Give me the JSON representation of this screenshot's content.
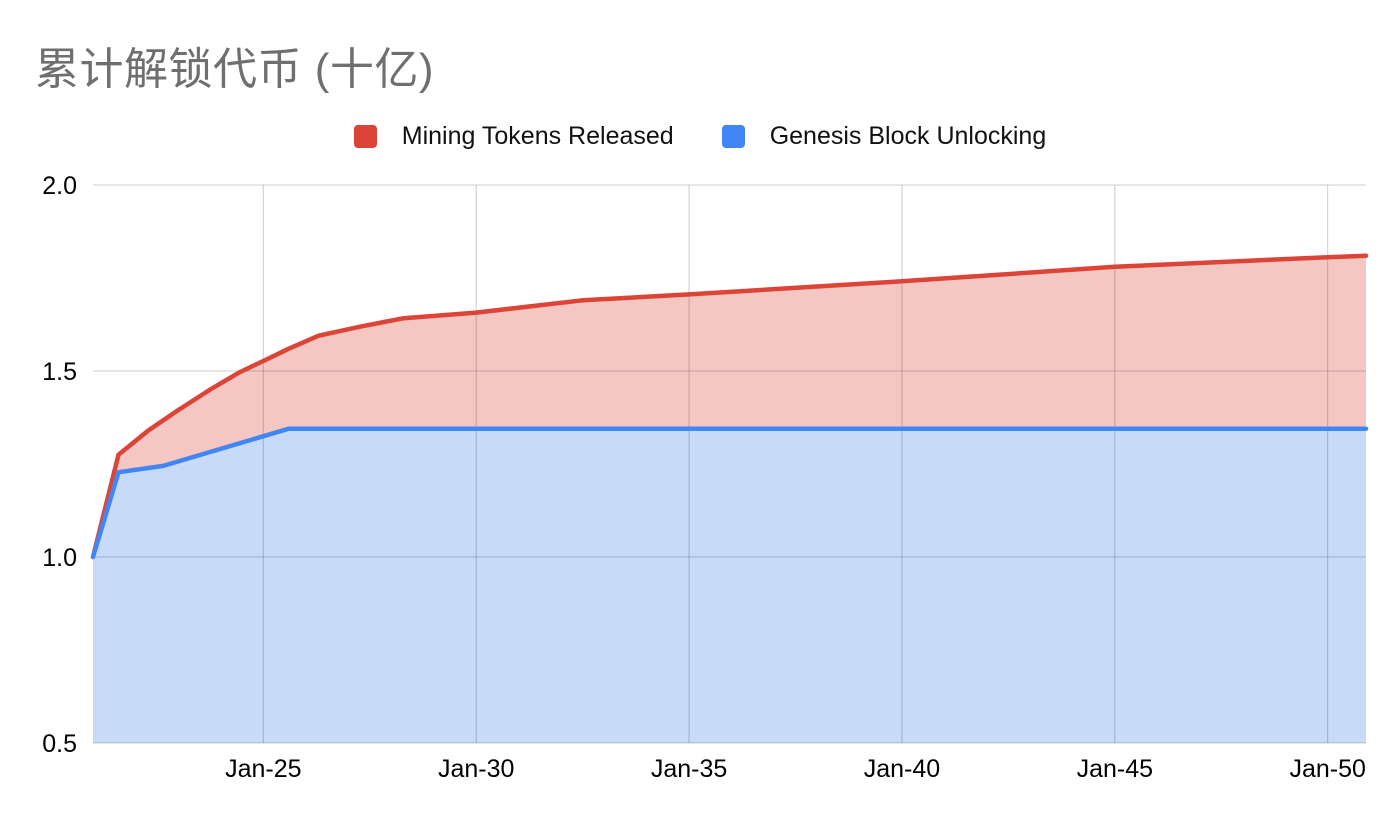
{
  "title": {
    "text": "累计解锁代币 (十亿)",
    "color": "#6F6F6F"
  },
  "legend": [
    {
      "label": "Mining Tokens Released",
      "color": "#DB4437"
    },
    {
      "label": "Genesis Block Unlocking",
      "color": "#4285F4"
    }
  ],
  "chart_data": {
    "type": "area",
    "title": "累计解锁代币 (十亿)",
    "xlabel": "",
    "ylabel": "",
    "grid": true,
    "legend_position": "top",
    "x_axis": {
      "min": 2021.0,
      "max": 2050.9,
      "ticks": [
        {
          "value": 2025,
          "label": "Jan-25"
        },
        {
          "value": 2030,
          "label": "Jan-30"
        },
        {
          "value": 2035,
          "label": "Jan-35"
        },
        {
          "value": 2040,
          "label": "Jan-40"
        },
        {
          "value": 2045,
          "label": "Jan-45"
        },
        {
          "value": 2050,
          "label": "Jan-50"
        }
      ]
    },
    "y_axis": {
      "min": 0.5,
      "max": 2.0,
      "ticks": [
        {
          "value": 0.5,
          "label": "0.5"
        },
        {
          "value": 1.0,
          "label": "1.0"
        },
        {
          "value": 1.5,
          "label": "1.5"
        },
        {
          "value": 2.0,
          "label": "2.0"
        }
      ]
    },
    "series": [
      {
        "name": "Mining Tokens Released",
        "color": "#DB4437",
        "fill": "#F4C7C3",
        "points": [
          [
            2021.0,
            1.0
          ],
          [
            2021.6,
            1.275
          ],
          [
            2022.3,
            1.34
          ],
          [
            2023.0,
            1.395
          ],
          [
            2023.75,
            1.45
          ],
          [
            2024.45,
            1.497
          ],
          [
            2025.0,
            1.527
          ],
          [
            2025.6,
            1.56
          ],
          [
            2026.3,
            1.595
          ],
          [
            2027.3,
            1.62
          ],
          [
            2028.3,
            1.642
          ],
          [
            2030.0,
            1.657
          ],
          [
            2032.5,
            1.69
          ],
          [
            2035.0,
            1.706
          ],
          [
            2040.0,
            1.741
          ],
          [
            2045.0,
            1.78
          ],
          [
            2050.0,
            1.806
          ],
          [
            2050.9,
            1.81
          ]
        ]
      },
      {
        "name": "Genesis Block Unlocking",
        "color": "#4285F4",
        "fill": "#C7DAF8",
        "points": [
          [
            2021.0,
            1.0
          ],
          [
            2021.6,
            1.228
          ],
          [
            2022.65,
            1.245
          ],
          [
            2025.6,
            1.345
          ],
          [
            2050.9,
            1.345
          ]
        ]
      }
    ]
  }
}
